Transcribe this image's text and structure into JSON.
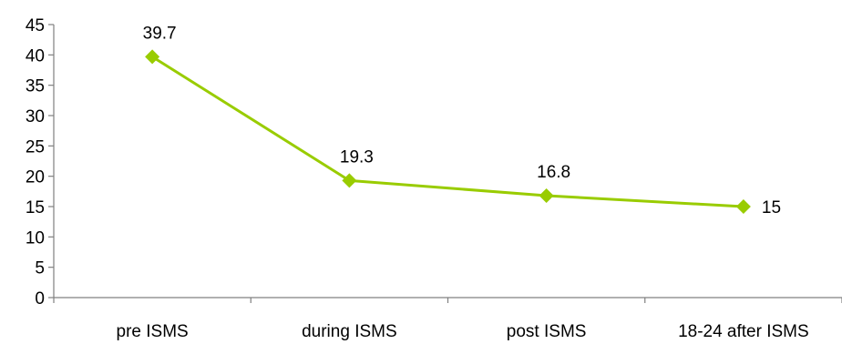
{
  "chart_data": {
    "type": "line",
    "categories": [
      "pre ISMS",
      "during ISMS",
      "post ISMS",
      "18-24 after ISMS"
    ],
    "series": [
      {
        "values": [
          39.7,
          19.3,
          16.8,
          15
        ]
      }
    ],
    "data_labels": [
      "39.7",
      "19.3",
      "16.8",
      "15"
    ],
    "ylim": [
      0,
      45
    ],
    "yticks": [
      0,
      5,
      10,
      15,
      20,
      25,
      30,
      35,
      40,
      45
    ],
    "grid": false,
    "legend": "none",
    "colors": {
      "line": "#99CC00",
      "marker": "#99CC00",
      "axis": "#808080"
    }
  }
}
